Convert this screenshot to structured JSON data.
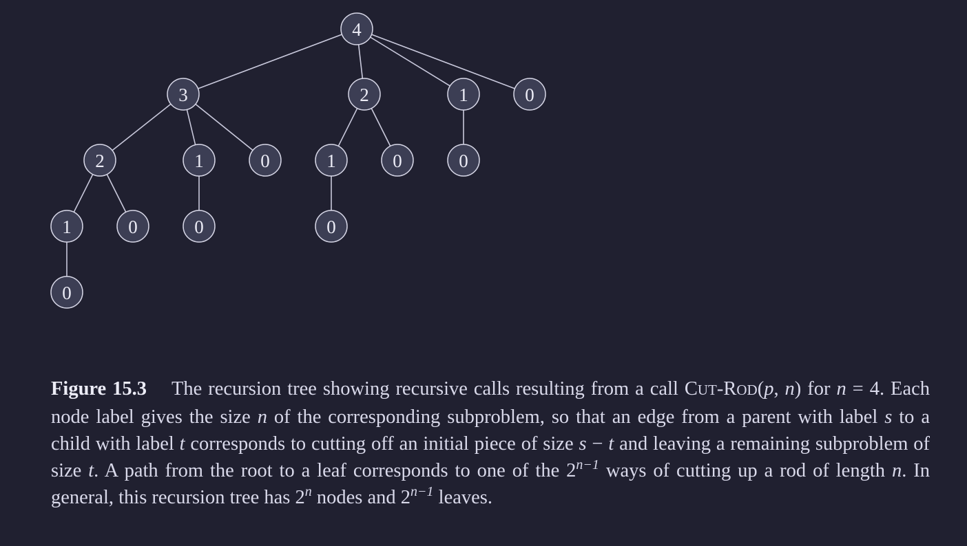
{
  "tree": {
    "nodes": [
      {
        "id": "r",
        "label": "4"
      },
      {
        "id": "a",
        "label": "3",
        "parent": "r"
      },
      {
        "id": "b",
        "label": "2",
        "parent": "r"
      },
      {
        "id": "c",
        "label": "1",
        "parent": "r"
      },
      {
        "id": "d",
        "label": "0",
        "parent": "r"
      },
      {
        "id": "a1",
        "label": "2",
        "parent": "a"
      },
      {
        "id": "a2",
        "label": "1",
        "parent": "a"
      },
      {
        "id": "a3",
        "label": "0",
        "parent": "a"
      },
      {
        "id": "b1",
        "label": "1",
        "parent": "b"
      },
      {
        "id": "b2",
        "label": "0",
        "parent": "b"
      },
      {
        "id": "c1",
        "label": "0",
        "parent": "c"
      },
      {
        "id": "a1a",
        "label": "1",
        "parent": "a1"
      },
      {
        "id": "a1b",
        "label": "0",
        "parent": "a1"
      },
      {
        "id": "a2a",
        "label": "0",
        "parent": "a2"
      },
      {
        "id": "b1a",
        "label": "0",
        "parent": "b1"
      },
      {
        "id": "a1a1",
        "label": "0",
        "parent": "a1a"
      }
    ]
  },
  "caption": {
    "figure_label": "Figure 15.3",
    "t1": "The recursion tree showing recursive calls resulting from a call ",
    "func_C": "C",
    "func_UT": "UT",
    "func_dash": "-",
    "func_R": "R",
    "func_OD": "OD",
    "func_open": "(",
    "var_p": "p",
    "func_comma": ", ",
    "var_n": "n",
    "func_close": ")",
    "t2": " for ",
    "t3": " = 4. Each node label gives the size ",
    "t4": " of the corresponding subproblem, so that an edge from a parent with label ",
    "var_s": "s",
    "t5": " to a child with label ",
    "var_t": "t",
    "t6": " corresponds to cutting off an initial piece of size ",
    "t7": " − ",
    "t8": " and leaving a remaining subproblem of size ",
    "t9": ". A path from the root to a leaf corresponds to one of the 2",
    "sup_n_minus_1": "n−1",
    "t10": " ways of cutting up a rod of length ",
    "t11": ". In general, this recursion tree has 2",
    "sup_n": "n",
    "t12": " nodes and 2",
    "t13": " leaves."
  }
}
